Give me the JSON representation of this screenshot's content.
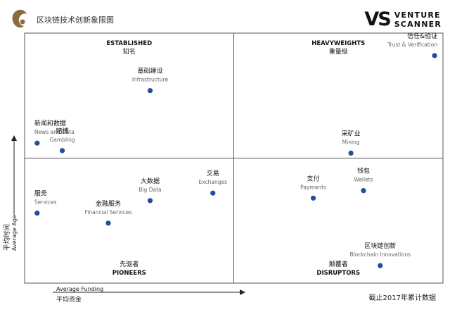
{
  "header": {
    "title": "区块链技术创新象限图",
    "logo": "swirl-logo-icon"
  },
  "brand": {
    "mark": "VS",
    "line1": "VENTURE",
    "line2": "SCANNER"
  },
  "footer": {
    "note": "截止2017年累计数据"
  },
  "colors": {
    "point": "#1f4e9c",
    "border": "#555555",
    "text": "#222222",
    "muted": "#666666"
  },
  "chart_data": {
    "type": "scatter",
    "x_axis": {
      "label_en": "Average Funding",
      "label_zh": "平均资金"
    },
    "y_axis": {
      "label_en": "Average Age",
      "label_zh": "平均时间"
    },
    "quadrants": [
      {
        "id": "top-left",
        "label_en": "ESTABLISHED",
        "label_zh": "知名"
      },
      {
        "id": "top-right",
        "label_en": "HEAVYWEIGHTS",
        "label_zh": "重量级"
      },
      {
        "id": "bottom-left",
        "label_en": "PIONEERS",
        "label_zh": "先驱者"
      },
      {
        "id": "bottom-right",
        "label_en": "DISRUPTORS",
        "label_zh": "颠覆者"
      }
    ],
    "points": [
      {
        "zh": "基础建设",
        "en": "Infrastructure",
        "x": 0.3,
        "y": 0.77
      },
      {
        "zh": "新闻和数据",
        "en": "News and Data",
        "x": 0.03,
        "y": 0.56
      },
      {
        "zh": "赌博",
        "en": "Gambling",
        "x": 0.09,
        "y": 0.53
      },
      {
        "zh": "信任&验证",
        "en": "Trust & Verification",
        "x": 0.98,
        "y": 0.91
      },
      {
        "zh": "采矿业",
        "en": "Mining",
        "x": 0.78,
        "y": 0.52
      },
      {
        "zh": "交易",
        "en": "Exchanges",
        "x": 0.45,
        "y": 0.36
      },
      {
        "zh": "大数据",
        "en": "Big Data",
        "x": 0.3,
        "y": 0.33
      },
      {
        "zh": "服务",
        "en": "Services",
        "x": 0.03,
        "y": 0.28
      },
      {
        "zh": "金融服务",
        "en": "Financial Services",
        "x": 0.2,
        "y": 0.24
      },
      {
        "zh": "支付",
        "en": "Payments",
        "x": 0.69,
        "y": 0.34
      },
      {
        "zh": "钱包",
        "en": "Wallets",
        "x": 0.81,
        "y": 0.37
      },
      {
        "zh": "区块链创新",
        "en": "Blockchain Innovations",
        "x": 0.85,
        "y": 0.07
      }
    ]
  }
}
